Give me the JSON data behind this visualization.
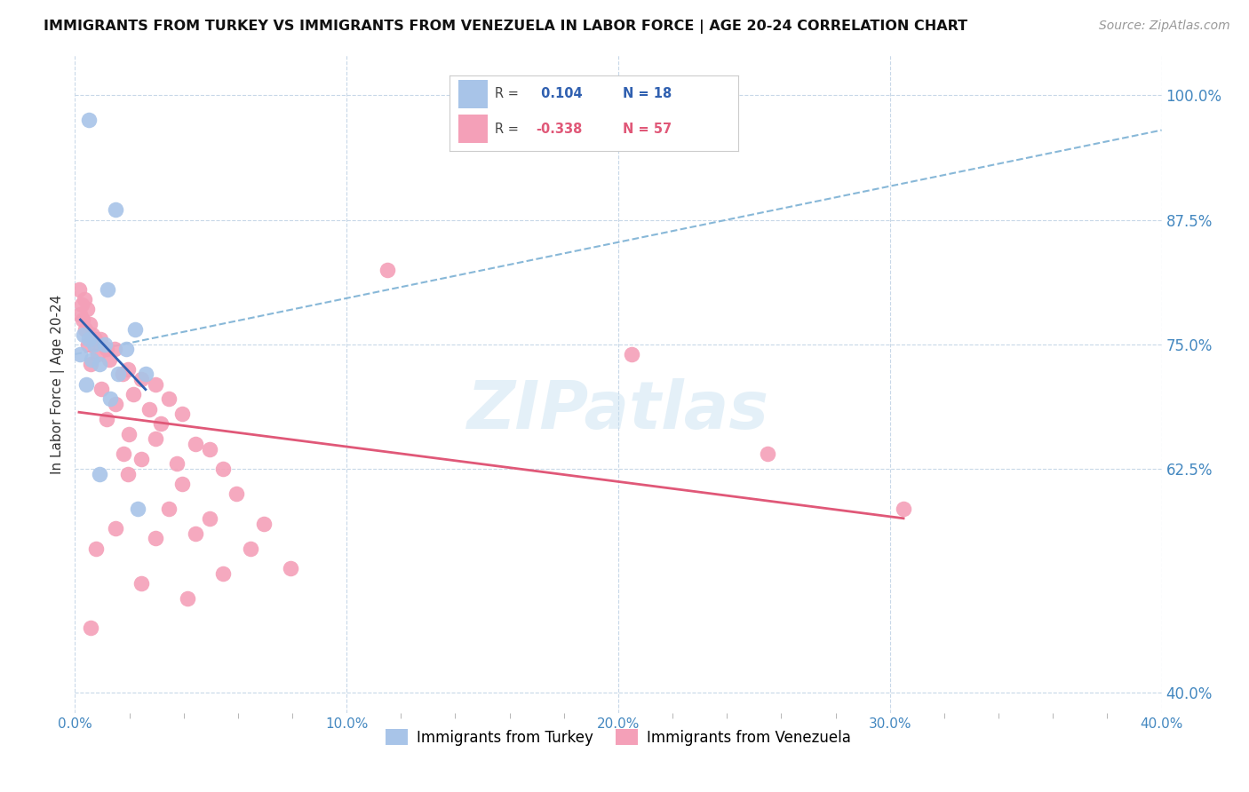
{
  "title": "IMMIGRANTS FROM TURKEY VS IMMIGRANTS FROM VENEZUELA IN LABOR FORCE | AGE 20-24 CORRELATION CHART",
  "source": "Source: ZipAtlas.com",
  "ylabel": "In Labor Force | Age 20-24",
  "x_tick_labels": [
    "0.0%",
    "",
    "",
    "",
    "",
    "10.0%",
    "",
    "",
    "",
    "",
    "20.0%",
    "",
    "",
    "",
    "",
    "30.0%",
    "",
    "",
    "",
    "",
    "40.0%"
  ],
  "x_tick_positions": [
    0.0,
    2.0,
    4.0,
    6.0,
    8.0,
    10.0,
    12.0,
    14.0,
    16.0,
    18.0,
    20.0,
    22.0,
    24.0,
    26.0,
    28.0,
    30.0,
    32.0,
    34.0,
    36.0,
    38.0,
    40.0
  ],
  "x_major_ticks": [
    0.0,
    10.0,
    20.0,
    30.0,
    40.0
  ],
  "x_major_labels": [
    "0.0%",
    "10.0%",
    "20.0%",
    "30.0%",
    "40.0%"
  ],
  "y_tick_labels": [
    "100.0%",
    "87.5%",
    "75.0%",
    "62.5%",
    "40.0%"
  ],
  "y_tick_positions": [
    100.0,
    87.5,
    75.0,
    62.5,
    40.0
  ],
  "xlim": [
    0.0,
    40.0
  ],
  "ylim": [
    38.0,
    104.0
  ],
  "watermark": "ZIPatlas",
  "turkey_color": "#a8c4e8",
  "venezuela_color": "#f4a0b8",
  "turkey_scatter": [
    [
      0.5,
      97.5
    ],
    [
      1.5,
      88.5
    ],
    [
      1.2,
      80.5
    ],
    [
      2.2,
      76.5
    ],
    [
      0.3,
      76.0
    ],
    [
      0.5,
      75.5
    ],
    [
      0.7,
      75.0
    ],
    [
      1.1,
      75.0
    ],
    [
      1.9,
      74.5
    ],
    [
      0.2,
      74.0
    ],
    [
      0.6,
      73.5
    ],
    [
      0.9,
      73.0
    ],
    [
      1.6,
      72.0
    ],
    [
      2.6,
      72.0
    ],
    [
      0.4,
      71.0
    ],
    [
      1.3,
      69.5
    ],
    [
      0.9,
      62.0
    ],
    [
      2.3,
      58.5
    ]
  ],
  "venezuela_scatter": [
    [
      0.15,
      80.5
    ],
    [
      0.35,
      79.5
    ],
    [
      0.25,
      79.0
    ],
    [
      0.45,
      78.5
    ],
    [
      0.18,
      78.0
    ],
    [
      0.28,
      77.5
    ],
    [
      0.55,
      77.0
    ],
    [
      0.38,
      76.5
    ],
    [
      0.65,
      76.0
    ],
    [
      0.75,
      75.5
    ],
    [
      0.95,
      75.5
    ],
    [
      0.48,
      75.0
    ],
    [
      1.15,
      74.5
    ],
    [
      1.45,
      74.5
    ],
    [
      0.85,
      74.0
    ],
    [
      1.25,
      73.5
    ],
    [
      0.58,
      73.0
    ],
    [
      1.95,
      72.5
    ],
    [
      1.75,
      72.0
    ],
    [
      2.45,
      71.5
    ],
    [
      2.95,
      71.0
    ],
    [
      0.98,
      70.5
    ],
    [
      2.15,
      70.0
    ],
    [
      3.45,
      69.5
    ],
    [
      1.48,
      69.0
    ],
    [
      2.75,
      68.5
    ],
    [
      3.95,
      68.0
    ],
    [
      1.18,
      67.5
    ],
    [
      3.15,
      67.0
    ],
    [
      1.98,
      66.0
    ],
    [
      2.95,
      65.5
    ],
    [
      4.45,
      65.0
    ],
    [
      4.95,
      64.5
    ],
    [
      1.78,
      64.0
    ],
    [
      2.45,
      63.5
    ],
    [
      3.75,
      63.0
    ],
    [
      5.45,
      62.5
    ],
    [
      1.95,
      62.0
    ],
    [
      3.95,
      61.0
    ],
    [
      5.95,
      60.0
    ],
    [
      3.45,
      58.5
    ],
    [
      4.95,
      57.5
    ],
    [
      6.95,
      57.0
    ],
    [
      1.48,
      56.5
    ],
    [
      4.45,
      56.0
    ],
    [
      2.95,
      55.5
    ],
    [
      6.45,
      54.5
    ],
    [
      7.95,
      52.5
    ],
    [
      5.45,
      52.0
    ],
    [
      2.45,
      51.0
    ],
    [
      20.5,
      74.0
    ],
    [
      25.5,
      64.0
    ],
    [
      30.5,
      58.5
    ],
    [
      11.5,
      82.5
    ],
    [
      0.78,
      54.5
    ],
    [
      4.15,
      49.5
    ],
    [
      0.58,
      46.5
    ]
  ],
  "turkey_line_color": "#3060b0",
  "venezuela_line_color": "#e05878",
  "dashed_line_color": "#88b8d8",
  "background_color": "#ffffff",
  "grid_color": "#c8d8e8",
  "right_label_color": "#4488c0",
  "legend_turkey_R": " 0.104",
  "legend_turkey_N": "18",
  "legend_venezuela_R": "-0.338",
  "legend_venezuela_N": "57"
}
